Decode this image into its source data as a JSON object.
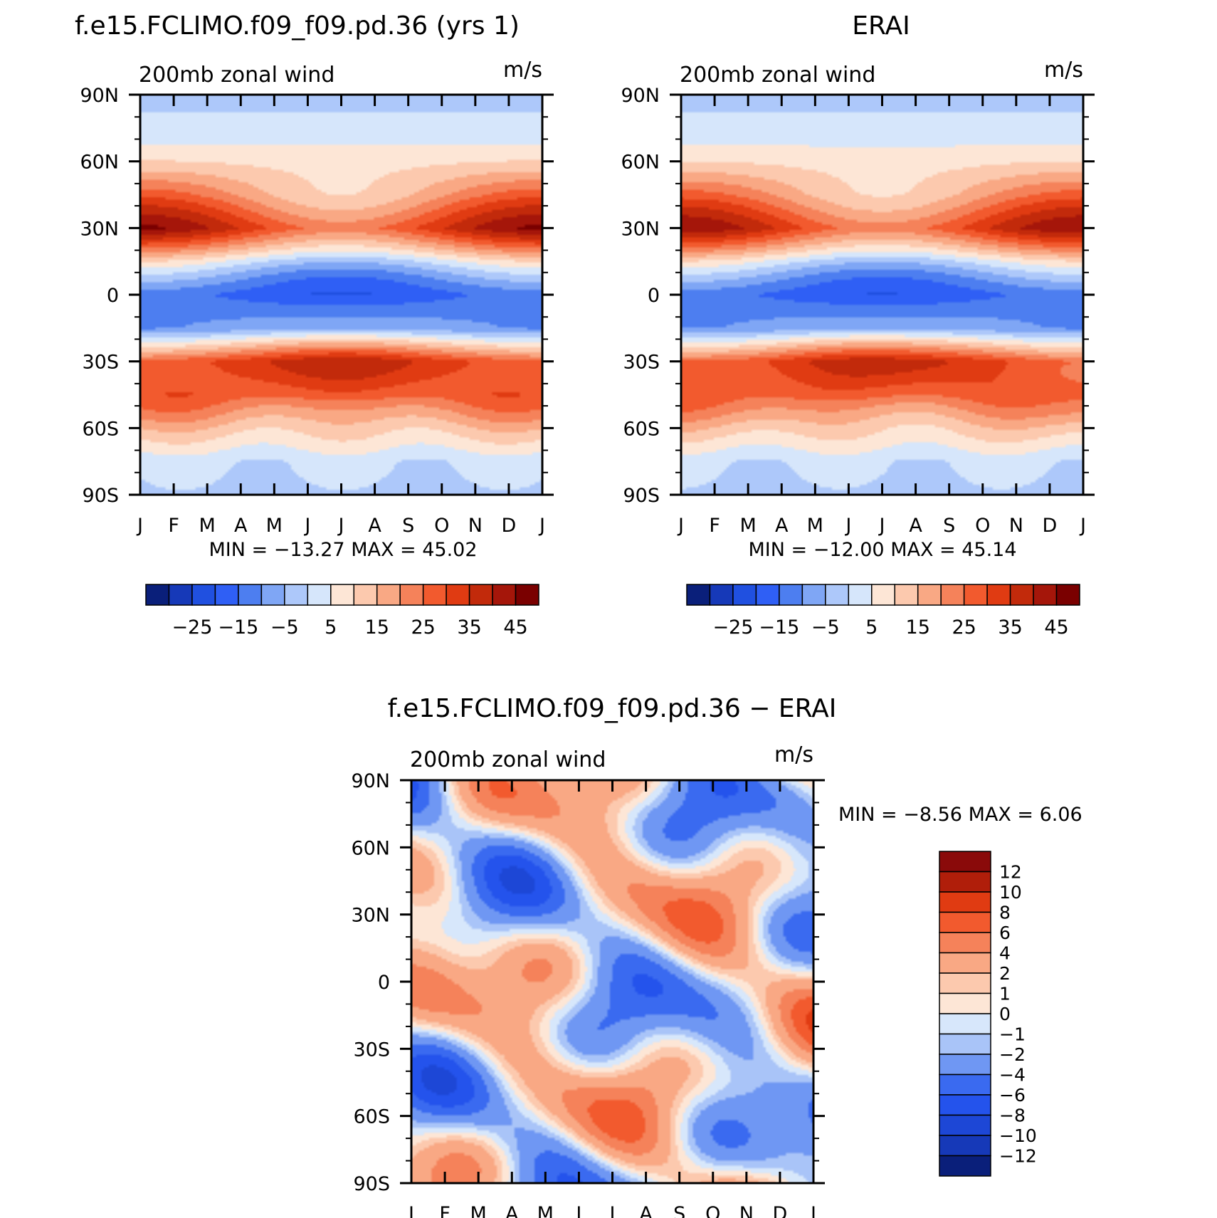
{
  "panels": [
    {
      "title": "f.e15.FCLIMO.f09_f09.pd.36 (yrs 1)",
      "left_label": "200mb zonal wind",
      "right_label": "m/s",
      "stats": "MIN = −13.27 MAX =   45.02",
      "colorbar_labels": [
        "−25",
        "−15",
        "−5",
        "5",
        "15",
        "25",
        "35",
        "45"
      ]
    },
    {
      "title": "ERAI",
      "left_label": "200mb zonal wind",
      "right_label": "m/s",
      "stats": "MIN = −12.00 MAX =   45.14",
      "colorbar_labels": [
        "−25",
        "−15",
        "−5",
        "5",
        "15",
        "25",
        "35",
        "45"
      ]
    },
    {
      "title": "f.e15.FCLIMO.f09_f09.pd.36 − ERAI",
      "left_label": "200mb zonal wind",
      "right_label": "m/s",
      "stats": "MIN =   −8.56 MAX =    6.06",
      "colorbar_labels": [
        "12",
        "10",
        "8",
        "6",
        "4",
        "2",
        "1",
        "0",
        "−1",
        "−2",
        "−4",
        "−6",
        "−8",
        "−10",
        "−12"
      ]
    }
  ],
  "x_ticks": [
    "J",
    "F",
    "M",
    "A",
    "M",
    "J",
    "J",
    "A",
    "S",
    "O",
    "N",
    "D",
    "J"
  ],
  "y_ticks": [
    "90N",
    "60N",
    "30N",
    "0",
    "30S",
    "60S",
    "90S"
  ],
  "chart_data": [
    {
      "type": "heatmap",
      "title": "f.e15.FCLIMO.f09_f09.pd.36 (yrs 1)",
      "subtitle": "200mb zonal wind",
      "units": "m/s",
      "x": [
        "J",
        "F",
        "M",
        "A",
        "M",
        "J",
        "J",
        "A",
        "S",
        "O",
        "N",
        "D",
        "J"
      ],
      "y": [
        "90N",
        "60N",
        "30N",
        "0",
        "30S",
        "60S",
        "90S"
      ],
      "min": -13.27,
      "max": 45.02,
      "levels": [
        -30,
        -25,
        -20,
        -15,
        -10,
        -5,
        0,
        5,
        10,
        15,
        20,
        25,
        30,
        35,
        40,
        45,
        50
      ],
      "colors": [
        "#0a1f7a",
        "#1639b8",
        "#2050e0",
        "#2f5ff5",
        "#4d7ef0",
        "#7fa6f5",
        "#adc8fa",
        "#d6e6fb",
        "#fde6d6",
        "#fcc9ae",
        "#f9a884",
        "#f5825a",
        "#f25a2e",
        "#e03b12",
        "#c22a0b",
        "#a5160a",
        "#7a0000"
      ],
      "zonal_profile_anchors": {
        "lat": [
          90,
          75,
          60,
          45,
          30,
          15,
          0,
          -15,
          -30,
          -45,
          -60,
          -75,
          -90
        ],
        "u": [
          4,
          6,
          14,
          24,
          40,
          12,
          -8,
          -3,
          38,
          33,
          18,
          6,
          4
        ]
      }
    },
    {
      "type": "heatmap",
      "title": "ERAI",
      "subtitle": "200mb zonal wind",
      "units": "m/s",
      "x": [
        "J",
        "F",
        "M",
        "A",
        "M",
        "J",
        "J",
        "A",
        "S",
        "O",
        "N",
        "D",
        "J"
      ],
      "y": [
        "90N",
        "60N",
        "30N",
        "0",
        "30S",
        "60S",
        "90S"
      ],
      "min": -12.0,
      "max": 45.14,
      "levels": [
        -30,
        -25,
        -20,
        -15,
        -10,
        -5,
        0,
        5,
        10,
        15,
        20,
        25,
        30,
        35,
        40,
        45,
        50
      ],
      "colors": [
        "#0a1f7a",
        "#1639b8",
        "#2050e0",
        "#2f5ff5",
        "#4d7ef0",
        "#7fa6f5",
        "#adc8fa",
        "#d6e6fb",
        "#fde6d6",
        "#fcc9ae",
        "#f9a884",
        "#f5825a",
        "#f25a2e",
        "#e03b12",
        "#c22a0b",
        "#a5160a",
        "#7a0000"
      ],
      "zonal_profile_anchors": {
        "lat": [
          90,
          75,
          60,
          45,
          30,
          15,
          0,
          -15,
          -30,
          -45,
          -60,
          -75,
          -90
        ],
        "u": [
          6,
          8,
          13,
          24,
          40,
          12,
          -7,
          -3,
          38,
          33,
          18,
          6,
          4
        ]
      }
    },
    {
      "type": "heatmap",
      "title": "f.e15.FCLIMO.f09_f09.pd.36 − ERAI",
      "subtitle": "200mb zonal wind",
      "units": "m/s",
      "x": [
        "J",
        "F",
        "M",
        "A",
        "M",
        "J",
        "J",
        "A",
        "S",
        "O",
        "N",
        "D",
        "J"
      ],
      "y": [
        "90N",
        "60N",
        "30N",
        "0",
        "30S",
        "60S",
        "90S"
      ],
      "min": -8.56,
      "max": 6.06,
      "levels": [
        -14,
        -12,
        -10,
        -8,
        -6,
        -4,
        -2,
        -1,
        0,
        1,
        2,
        4,
        6,
        8,
        10,
        12,
        14
      ],
      "colors": [
        "#0a1f7a",
        "#1639b8",
        "#1d47d6",
        "#2453ec",
        "#3a6af0",
        "#6f97f3",
        "#a9c4f8",
        "#d7e7fb",
        "#fde6d6",
        "#fcc9ae",
        "#f9a884",
        "#f5825a",
        "#f25a2e",
        "#e03b12",
        "#b01e0a",
        "#8a0a0a"
      ]
    }
  ]
}
